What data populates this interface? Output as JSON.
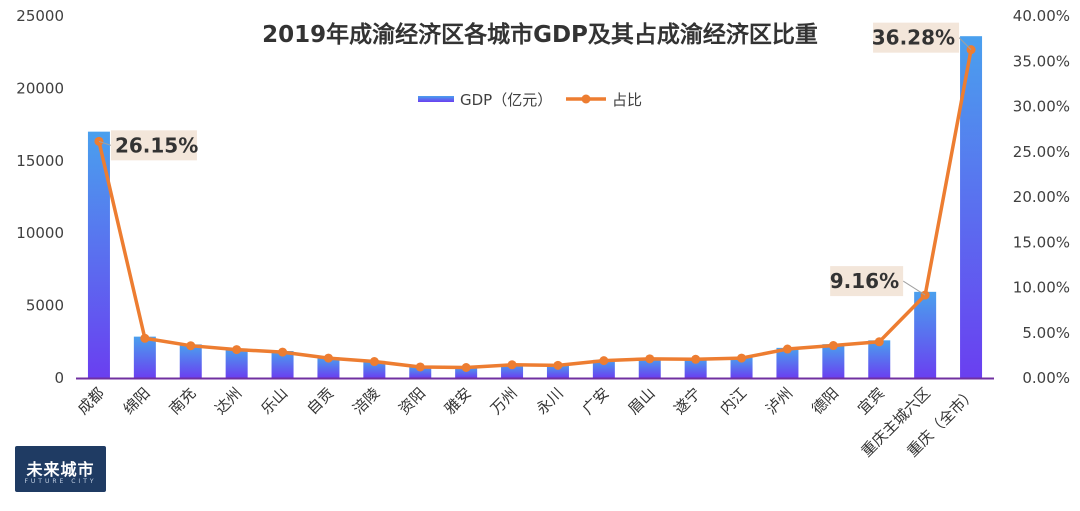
{
  "chart_data": {
    "type": "bar+line",
    "title": "2019年成渝经济区各城市GDP及其占成渝经济区比重",
    "categories": [
      "成都",
      "绵阳",
      "南充",
      "达州",
      "乐山",
      "自贡",
      "涪陵",
      "资阳",
      "雅安",
      "万州",
      "永川",
      "广安",
      "眉山",
      "遂宁",
      "内江",
      "泸州",
      "德阳",
      "宜宾",
      "重庆主城六区",
      "重庆（全市）"
    ],
    "series": [
      {
        "name": "GDP（亿元）",
        "type": "bar",
        "axis": "left",
        "values": [
          17013,
          2856,
          2322,
          2041,
          1863,
          1428,
          1181,
          791,
          752,
          953,
          911,
          1251,
          1380,
          1345,
          1434,
          2081,
          2336,
          2602,
          5950,
          23606
        ]
      },
      {
        "name": "占比",
        "type": "line",
        "axis": "right",
        "values": [
          26.15,
          4.39,
          3.57,
          3.14,
          2.86,
          2.2,
          1.82,
          1.22,
          1.16,
          1.46,
          1.4,
          1.92,
          2.12,
          2.07,
          2.2,
          3.2,
          3.59,
          4.0,
          9.16,
          36.28
        ]
      }
    ],
    "y_left": {
      "ylim": [
        0,
        25000
      ],
      "ticks": [
        "0",
        "5000",
        "10000",
        "15000",
        "20000",
        "25000"
      ]
    },
    "y_right": {
      "ylim": [
        0,
        40
      ],
      "ticks": [
        "0.00%",
        "5.00%",
        "10.00%",
        "15.00%",
        "20.00%",
        "25.00%",
        "30.00%",
        "35.00%",
        "40.00%"
      ]
    },
    "annotations": [
      {
        "index": 0,
        "text": "26.15%"
      },
      {
        "index": 18,
        "text": "9.16%"
      },
      {
        "index": 19,
        "text": "36.28%"
      }
    ],
    "legend": {
      "position": "top-center",
      "items": [
        "GDP（亿元）",
        "占比"
      ]
    },
    "colors": {
      "bar_top": "#4aa0ee",
      "bar_bottom": "#6a3ff0",
      "line": "#ed7d31",
      "annotation_bg": "#f3e6da",
      "axis": "#7030a0"
    },
    "grid": false
  },
  "logo": {
    "text": "未来城市",
    "sub": "FUTURE CITY"
  }
}
